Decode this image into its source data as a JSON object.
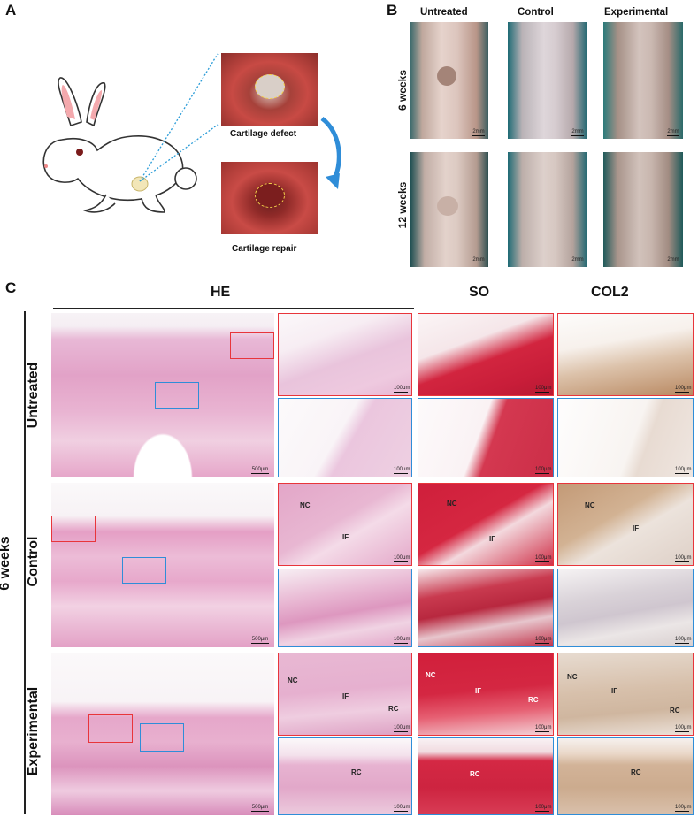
{
  "panel_a": {
    "letter": "A",
    "defect_label": "Cartilage  defect",
    "repair_label": "Cartilage  repair"
  },
  "panel_b": {
    "letter": "B",
    "columns": [
      "Untreated",
      "Control",
      "Experimental"
    ],
    "rows": [
      "6 weeks",
      "12 weeks"
    ],
    "scale": "2mm"
  },
  "panel_c": {
    "letter": "C",
    "stain_headers": {
      "he": "HE",
      "so": "SO",
      "col2": "COL2"
    },
    "timepoint": "6 weeks",
    "rows": [
      "Untreated",
      "Control",
      "Experimental"
    ],
    "scale_large": "500μm",
    "scale_small": "100μm",
    "annotations": {
      "nc": "NC",
      "if": "IF",
      "rc": "RC"
    }
  },
  "colors": {
    "red_box": "#e8353b",
    "blue_box": "#2f8dd8",
    "he_pink": "#e6a4c8",
    "so_red": "#d41f3c",
    "col2_brown": "#caa27a"
  }
}
